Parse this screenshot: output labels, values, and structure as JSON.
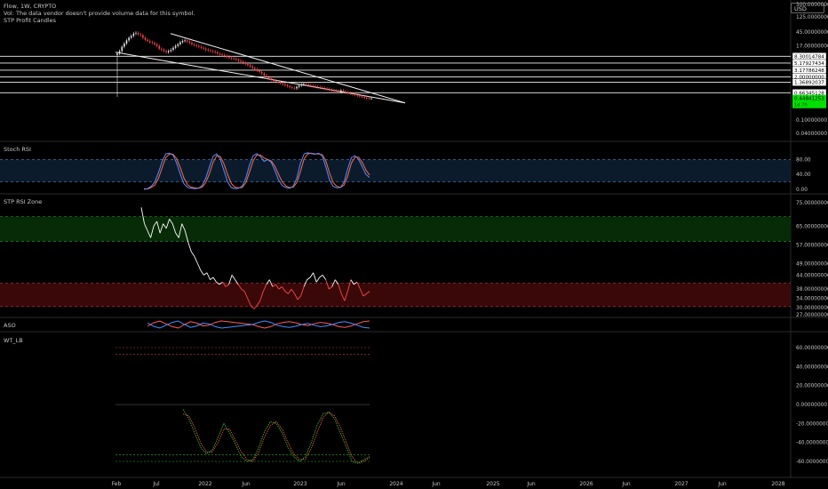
{
  "header": {
    "symbol_line": "Flow, 1W, CRYPTO",
    "vol_line": "Vol: The data vendor doesn't provide volume data for this symbol.",
    "candles_line": "STP Profit Candles"
  },
  "currency": "USD",
  "colors": {
    "background": "#000000",
    "up_candle": "#e8e8e8",
    "down_candle": "#ff4a4a",
    "price_line": "#f0f0f0",
    "current_price_bg": "#00e000",
    "stoch_k": "#5b8cff",
    "stoch_d": "#ff6b4a",
    "rsi_line": "#ffffff",
    "rsi_low": "#ff4a4a",
    "aso_bull": "#ff5a5a",
    "aso_bear": "#4a8cff"
  },
  "chart_data": [
    {
      "type": "line",
      "pane": "price",
      "title": "Flow, 1W, CRYPTO",
      "log_scale": true,
      "x_axis_labels": [
        "Feb",
        "Jul",
        "2022",
        "Jun",
        "2023",
        "Jun",
        "2024",
        "Jun",
        "2025",
        "Jun",
        "2026",
        "Jun",
        "2027",
        "Jun",
        "2028"
      ],
      "y_tick_labels": [
        "300.00000000",
        "125.00000000",
        "45.00000000",
        "17.00000000",
        "0.10000000",
        "0.04000000"
      ],
      "horizontal_levels": [
        {
          "value": 8.30014784,
          "label": "8.30014784"
        },
        {
          "value": 5.17927434,
          "label": "5.17927434"
        },
        {
          "value": 3.17786248,
          "label": "3.17786248"
        },
        {
          "value": 2.0,
          "label": "2.00000000"
        },
        {
          "value": 1.36892037,
          "label": "1.36892037"
        },
        {
          "value": 0.66345128,
          "label": "0.66345128"
        }
      ],
      "current_price": {
        "value": 0.44841253,
        "label": "0.44841253",
        "countdown": "1d 7h"
      },
      "close": [
        10,
        12,
        16,
        20,
        25,
        30,
        34,
        40,
        42,
        38,
        36,
        30,
        26,
        24,
        22,
        21,
        19,
        17,
        14,
        13,
        12,
        11,
        12,
        13,
        15,
        17,
        19,
        22,
        24,
        25,
        23,
        21,
        19,
        18,
        17,
        16,
        15,
        14,
        13,
        12.5,
        12,
        11.5,
        11,
        10,
        9.5,
        9,
        8.5,
        8,
        7.5,
        7.2,
        7.0,
        6.6,
        6.1,
        5.7,
        5.3,
        4.9,
        4.5,
        4.1,
        3.7,
        3.4,
        3.1,
        2.8,
        2.5,
        2.2,
        1.95,
        1.8,
        1.65,
        1.5,
        1.42,
        1.35,
        1.3,
        1.2,
        1.12,
        1.05,
        0.98,
        0.93,
        0.9,
        1.0,
        1.1,
        1.18,
        1.22,
        1.18,
        1.12,
        1.08,
        1.05,
        1.02,
        0.98,
        0.95,
        0.92,
        0.88,
        0.85,
        0.82,
        0.79,
        0.76,
        0.74,
        0.72,
        0.78,
        0.72,
        0.68,
        0.65,
        0.63,
        0.61,
        0.58,
        0.55,
        0.52,
        0.5,
        0.47,
        0.46,
        0.45,
        0.45
      ]
    },
    {
      "type": "line",
      "pane": "stoch_rsi",
      "title": "Stoch RSI",
      "y_tick_labels": [
        "80.00",
        "40.00",
        "0.00"
      ],
      "bands": [
        80,
        20
      ],
      "series": [
        {
          "values": [
            0,
            2,
            8,
            20,
            45,
            75,
            95,
            97,
            92,
            70,
            40,
            15,
            5,
            3,
            2,
            3,
            10,
            30,
            60,
            88,
            95,
            80,
            50,
            20,
            5,
            2,
            3,
            8,
            30,
            65,
            90,
            96,
            88,
            75,
            80,
            72,
            50,
            25,
            10,
            5,
            3,
            8,
            30,
            70,
            95,
            98,
            96,
            94,
            97,
            90,
            60,
            25,
            8,
            4,
            5,
            20,
            55,
            85,
            90,
            80,
            60,
            40,
            32
          ]
        },
        {
          "values": [
            2,
            1,
            5,
            12,
            30,
            58,
            85,
            95,
            94,
            82,
            58,
            30,
            12,
            6,
            4,
            3,
            6,
            18,
            42,
            72,
            90,
            88,
            68,
            40,
            16,
            6,
            4,
            5,
            18,
            46,
            76,
            92,
            92,
            84,
            80,
            76,
            62,
            40,
            20,
            9,
            5,
            6,
            18,
            48,
            82,
            95,
            97,
            95,
            95,
            93,
            76,
            44,
            18,
            8,
            5,
            12,
            36,
            70,
            86,
            86,
            72,
            52,
            38
          ]
        }
      ]
    },
    {
      "type": "line",
      "pane": "stp_rsi_zone",
      "title": "STP RSI Zone",
      "y_tick_labels": [
        "75.00000000",
        "65.00000000",
        "57.00000000",
        "49.00000000",
        "44.00000000",
        "38.00000000",
        "34.00000000",
        "30.00000000",
        "27.00000000"
      ],
      "zones": [
        {
          "name": "high",
          "from": 58.5,
          "to": 69
        },
        {
          "name": "low",
          "from": 30.5,
          "to": 40.5
        }
      ],
      "values": [
        73,
        66,
        63,
        60,
        65,
        67,
        62,
        66,
        64,
        68,
        66,
        62,
        60,
        66,
        63,
        58,
        54,
        52,
        49,
        46,
        44,
        45,
        42,
        43,
        41,
        40,
        41,
        39,
        40,
        44,
        42,
        40,
        38,
        37,
        34,
        31,
        29.5,
        31,
        33,
        37,
        40,
        42,
        39,
        40,
        38,
        39,
        37,
        36,
        38,
        36,
        33.5,
        35,
        39,
        42,
        43,
        45,
        41,
        43,
        44,
        42,
        38,
        39,
        42,
        40,
        36,
        33,
        37,
        42,
        40,
        41,
        38,
        35,
        36,
        37
      ]
    },
    {
      "type": "line",
      "pane": "aso",
      "title": "ASO",
      "series": [
        {
          "values": [
            45,
            55,
            60,
            52,
            44,
            40,
            50,
            58,
            54,
            46,
            48,
            56,
            60,
            58,
            56,
            54,
            52,
            50,
            44,
            40,
            44,
            52,
            56,
            58,
            55,
            50,
            47,
            52,
            56,
            54,
            50,
            44,
            42,
            46,
            52,
            58,
            60
          ]
        },
        {
          "values": [
            55,
            45,
            40,
            48,
            56,
            60,
            50,
            42,
            46,
            54,
            52,
            44,
            40,
            42,
            44,
            46,
            48,
            50,
            56,
            60,
            56,
            48,
            44,
            42,
            45,
            50,
            53,
            48,
            44,
            46,
            50,
            56,
            58,
            54,
            48,
            42,
            40
          ]
        }
      ]
    },
    {
      "type": "line",
      "pane": "wt_lb",
      "title": "WT_LB",
      "y_tick_labels": [
        "60.00000000",
        "40.00000000",
        "20.00000000",
        "0.00000000",
        "-20.00000000",
        "-40.00000000",
        "-60.00000000"
      ],
      "reference_lines": [
        60,
        53,
        0,
        -53,
        -60
      ],
      "series": [
        {
          "values": [
            -5,
            -15,
            -30,
            -45,
            -52,
            -48,
            -35,
            -20,
            -30,
            -42,
            -55,
            -60,
            -58,
            -45,
            -28,
            -18,
            -20,
            -30,
            -45,
            -55,
            -60,
            -55,
            -40,
            -22,
            -10,
            -8,
            -15,
            -30,
            -45,
            -60,
            -62,
            -58,
            -55
          ]
        },
        {
          "values": [
            -10,
            -12,
            -24,
            -40,
            -50,
            -50,
            -40,
            -26,
            -26,
            -38,
            -50,
            -58,
            -60,
            -50,
            -34,
            -22,
            -18,
            -26,
            -40,
            -52,
            -58,
            -58,
            -46,
            -30,
            -14,
            -8,
            -12,
            -24,
            -40,
            -55,
            -62,
            -60,
            -56
          ]
        }
      ]
    }
  ]
}
